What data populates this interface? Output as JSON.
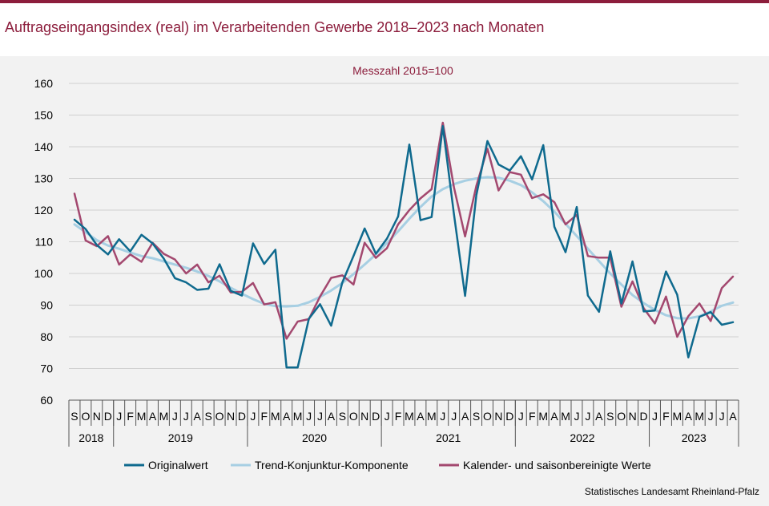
{
  "title": "Auftragseingangsindex (real) im Verarbeitenden Gewerbe 2018–2023 nach Monaten",
  "source": "Statistisches Landesamt  Rheinland-Pfalz",
  "colors": {
    "title": "#8c1d3c",
    "original": "#0f6a8e",
    "trend": "#a7cfe3",
    "seasonal": "#a3486f",
    "grid": "#d0d0d0"
  },
  "chart_data": {
    "type": "line",
    "title": "Auftragseingangsindex (real) im Verarbeitenden Gewerbe 2018–2023 nach Monaten",
    "subtitle": "Messzahl  2015=100",
    "xlabel": "",
    "ylabel": "",
    "ylim": [
      60,
      160
    ],
    "yticks": [
      60,
      70,
      80,
      90,
      100,
      110,
      120,
      130,
      140,
      150,
      160
    ],
    "grid": true,
    "legend_position": "bottom",
    "months": [
      "S",
      "O",
      "N",
      "D",
      "J",
      "F",
      "M",
      "A",
      "M",
      "J",
      "J",
      "A",
      "S",
      "O",
      "N",
      "D",
      "J",
      "F",
      "M",
      "A",
      "M",
      "J",
      "J",
      "A",
      "S",
      "O",
      "N",
      "D",
      "J",
      "F",
      "M",
      "A",
      "M",
      "J",
      "J",
      "A",
      "S",
      "O",
      "N",
      "D",
      "J",
      "F",
      "M",
      "A",
      "M",
      "J",
      "J",
      "A",
      "S",
      "O",
      "N",
      "D",
      "J",
      "F",
      "M",
      "A",
      "M",
      "J",
      "J",
      "A"
    ],
    "years": [
      {
        "label": "2018",
        "start": 0,
        "count": 4
      },
      {
        "label": "2019",
        "start": 4,
        "count": 12
      },
      {
        "label": "2020",
        "start": 16,
        "count": 12
      },
      {
        "label": "2021",
        "start": 28,
        "count": 12
      },
      {
        "label": "2022",
        "start": 40,
        "count": 12
      },
      {
        "label": "2023",
        "start": 52,
        "count": 8
      }
    ],
    "series": [
      {
        "name": "Originalwert",
        "key": "original",
        "values": [
          117.0,
          114.0,
          109.0,
          106.0,
          110.8,
          107.0,
          112.2,
          109.5,
          104.7,
          98.5,
          97.2,
          94.8,
          95.2,
          102.9,
          94.5,
          93.0,
          109.5,
          103.0,
          107.5,
          70.3,
          70.3,
          85.7,
          90.3,
          83.5,
          97.2,
          105.5,
          114.2,
          106.2,
          111.0,
          118.0,
          140.7,
          116.8,
          117.8,
          146.5,
          118.7,
          92.9,
          124.6,
          141.8,
          134.4,
          132.5,
          137.0,
          129.7,
          140.5,
          114.7,
          106.7,
          121.0,
          93.0,
          87.9,
          107.0,
          90.5,
          103.8,
          88.0,
          88.3,
          100.6,
          93.3,
          73.5,
          86.3,
          87.8,
          83.8,
          84.6
        ]
      },
      {
        "name": "Trend-Konjunktur-Komponente",
        "key": "trend",
        "values": [
          115.5,
          113.0,
          110.5,
          108.8,
          107.8,
          106.6,
          105.5,
          104.8,
          103.8,
          102.8,
          101.8,
          100.6,
          99.2,
          97.5,
          95.5,
          93.6,
          91.9,
          90.4,
          89.7,
          89.6,
          89.8,
          90.9,
          92.6,
          94.6,
          97.0,
          99.8,
          102.8,
          106.0,
          109.6,
          113.3,
          117.3,
          121.0,
          124.3,
          126.6,
          128.2,
          129.3,
          130.0,
          130.4,
          130.2,
          129.3,
          127.9,
          125.6,
          122.8,
          119.5,
          115.7,
          111.8,
          107.8,
          103.9,
          100.0,
          96.5,
          93.2,
          90.6,
          88.5,
          86.8,
          85.9,
          85.8,
          86.5,
          88.0,
          89.8,
          90.8
        ]
      },
      {
        "name": "Kalender- und saisonbereinigte Werte",
        "key": "seasonal",
        "values": [
          125.2,
          110.4,
          108.6,
          111.8,
          102.8,
          106.0,
          103.7,
          109.7,
          106.2,
          104.4,
          100.0,
          102.8,
          97.2,
          99.3,
          94.0,
          94.2,
          97.0,
          90.2,
          90.9,
          79.4,
          84.8,
          85.6,
          92.7,
          98.6,
          99.4,
          96.5,
          109.7,
          104.9,
          108.0,
          115.5,
          120.0,
          123.7,
          126.6,
          147.6,
          127.2,
          111.7,
          127.6,
          139.4,
          126.2,
          132.0,
          131.2,
          123.8,
          125.0,
          122.5,
          115.5,
          118.5,
          105.5,
          105.0,
          105.0,
          89.5,
          97.5,
          89.0,
          84.2,
          92.7,
          80.0,
          86.5,
          90.5,
          85.0,
          95.4,
          99.0
        ]
      }
    ]
  }
}
